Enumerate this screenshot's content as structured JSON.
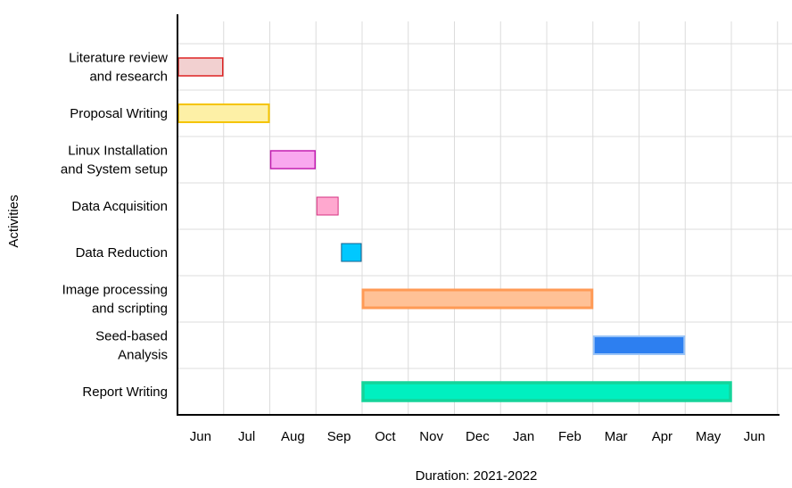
{
  "chart_data": {
    "type": "gantt",
    "xlabel": "Duration: 2021-2022",
    "ylabel": "Activities",
    "x_ticks": [
      "Jun",
      "Jul",
      "Aug",
      "Sep",
      "Oct",
      "Nov",
      "Dec",
      "Jan",
      "Feb",
      "Mar",
      "Apr",
      "May",
      "Jun"
    ],
    "grid": true,
    "tasks": [
      {
        "label_lines": [
          "Literature review",
          "and research"
        ],
        "start": "2021-06-01",
        "end": "2021-07-01",
        "fill": "#f2d0d0",
        "stroke": "#dd2222",
        "stroke_width": 1.5
      },
      {
        "label_lines": [
          "Proposal Writing"
        ],
        "start": "2021-06-01",
        "end": "2021-08-01",
        "fill": "#fdf0a6",
        "stroke": "#f5c400",
        "stroke_width": 2
      },
      {
        "label_lines": [
          "Linux Installation",
          "and System setup"
        ],
        "start": "2021-08-01",
        "end": "2021-09-01",
        "fill": "#f9a8ef",
        "stroke": "#c21eb0",
        "stroke_width": 1.5
      },
      {
        "label_lines": [
          "Data Acquisition"
        ],
        "start": "2021-09-01",
        "end": "2021-09-16",
        "fill": "#ffa8cf",
        "stroke": "#d63080",
        "stroke_width": 1
      },
      {
        "label_lines": [
          "Data Reduction"
        ],
        "start": "2021-09-17",
        "end": "2021-10-01",
        "fill": "#00c8ff",
        "stroke": "#15608c",
        "stroke_width": 1
      },
      {
        "label_lines": [
          "Image processing",
          "and scripting"
        ],
        "start": "2021-10-01",
        "end": "2022-03-01",
        "fill": "#ffc196",
        "stroke": "#ff9a55",
        "stroke_width": 3
      },
      {
        "label_lines": [
          "Seed-based",
          "Analysis"
        ],
        "start": "2022-03-01",
        "end": "2022-05-01",
        "fill": "#2d7ff0",
        "stroke": "#9ac4f7",
        "stroke_width": 2
      },
      {
        "label_lines": [
          "Report Writing"
        ],
        "start": "2021-10-01",
        "end": "2022-06-01",
        "fill": "#00f0c0",
        "stroke": "#14d49a",
        "stroke_width": 3.5
      }
    ]
  }
}
